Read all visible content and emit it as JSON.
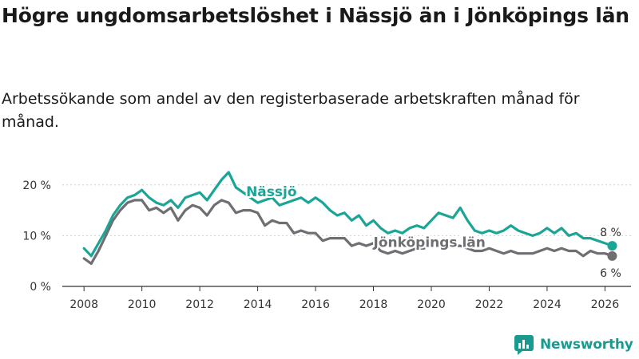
{
  "title": "Högre ungdomsarbetslöshet i Nässjö än i Jönköpings län",
  "subtitle": "Arbetssökande som andel av den registerbaserade arbetskraften månad för månad.",
  "brand": {
    "name": "Newsworthy",
    "icon": "newsworthy-logo-icon",
    "color": "#1a9a8f"
  },
  "chart_data": {
    "type": "line",
    "title": "Högre ungdomsarbetslöshet i Nässjö än i Jönköpings län",
    "xlabel": "",
    "ylabel": "",
    "xlim": [
      2007.25,
      2026.9
    ],
    "ylim": [
      0,
      25
    ],
    "yticks": [
      0,
      10,
      20
    ],
    "ytick_labels": [
      "0 %",
      "10 %",
      "20 %"
    ],
    "xticks": [
      2008,
      2010,
      2012,
      2014,
      2016,
      2018,
      2020,
      2022,
      2024,
      2026
    ],
    "xtick_labels": [
      "2008",
      "2010",
      "2012",
      "2014",
      "2016",
      "2018",
      "2020",
      "2022",
      "2024",
      "2026"
    ],
    "grid": "horizontal",
    "series": [
      {
        "name": "Nässjö",
        "label": "Nässjö",
        "color": "#1ba597",
        "end_label": "8 %",
        "end_value": 8,
        "x": [
          2008.0,
          2008.25,
          2008.5,
          2008.75,
          2009.0,
          2009.25,
          2009.5,
          2009.75,
          2010.0,
          2010.25,
          2010.5,
          2010.75,
          2011.0,
          2011.25,
          2011.5,
          2011.75,
          2012.0,
          2012.25,
          2012.5,
          2012.75,
          2013.0,
          2013.25,
          2013.5,
          2013.75,
          2014.0,
          2014.25,
          2014.5,
          2014.75,
          2015.0,
          2015.25,
          2015.5,
          2015.75,
          2016.0,
          2016.25,
          2016.5,
          2016.75,
          2017.0,
          2017.25,
          2017.5,
          2017.75,
          2018.0,
          2018.25,
          2018.5,
          2018.75,
          2019.0,
          2019.25,
          2019.5,
          2019.75,
          2020.0,
          2020.25,
          2020.5,
          2020.75,
          2021.0,
          2021.25,
          2021.5,
          2021.75,
          2022.0,
          2022.25,
          2022.5,
          2022.75,
          2023.0,
          2023.25,
          2023.5,
          2023.75,
          2024.0,
          2024.25,
          2024.5,
          2024.75,
          2025.0,
          2025.25,
          2025.5,
          2025.75,
          2026.0,
          2026.25
        ],
        "values": [
          7.5,
          6.0,
          8.5,
          11.0,
          14.0,
          16.0,
          17.5,
          18.0,
          19.0,
          17.5,
          16.5,
          16.0,
          17.0,
          15.5,
          17.5,
          18.0,
          18.5,
          17.0,
          19.0,
          21.0,
          22.5,
          19.5,
          18.5,
          17.5,
          16.5,
          17.0,
          17.5,
          16.0,
          16.5,
          17.0,
          17.5,
          16.5,
          17.5,
          16.5,
          15.0,
          14.0,
          14.5,
          13.0,
          14.0,
          12.0,
          13.0,
          11.5,
          10.5,
          11.0,
          10.5,
          11.5,
          12.0,
          11.5,
          13.0,
          14.5,
          14.0,
          13.5,
          15.5,
          13.0,
          11.0,
          10.5,
          11.0,
          10.5,
          11.0,
          12.0,
          11.0,
          10.5,
          10.0,
          10.5,
          11.5,
          10.5,
          11.5,
          10.0,
          10.5,
          9.5,
          9.5,
          9.0,
          8.5,
          8.0
        ]
      },
      {
        "name": "Jönköpings län",
        "label": "Jönköpings län",
        "color": "#6e6e73",
        "end_label": "6 %",
        "end_value": 6,
        "x": [
          2008.0,
          2008.25,
          2008.5,
          2008.75,
          2009.0,
          2009.25,
          2009.5,
          2009.75,
          2010.0,
          2010.25,
          2010.5,
          2010.75,
          2011.0,
          2011.25,
          2011.5,
          2011.75,
          2012.0,
          2012.25,
          2012.5,
          2012.75,
          2013.0,
          2013.25,
          2013.5,
          2013.75,
          2014.0,
          2014.25,
          2014.5,
          2014.75,
          2015.0,
          2015.25,
          2015.5,
          2015.75,
          2016.0,
          2016.25,
          2016.5,
          2016.75,
          2017.0,
          2017.25,
          2017.5,
          2017.75,
          2018.0,
          2018.25,
          2018.5,
          2018.75,
          2019.0,
          2019.25,
          2019.5,
          2019.75,
          2020.0,
          2020.25,
          2020.5,
          2020.75,
          2021.0,
          2021.25,
          2021.5,
          2021.75,
          2022.0,
          2022.25,
          2022.5,
          2022.75,
          2023.0,
          2023.25,
          2023.5,
          2023.75,
          2024.0,
          2024.25,
          2024.5,
          2024.75,
          2025.0,
          2025.25,
          2025.5,
          2025.75,
          2026.0,
          2026.25
        ],
        "values": [
          5.5,
          4.5,
          7.0,
          10.0,
          13.0,
          15.0,
          16.5,
          17.0,
          17.0,
          15.0,
          15.5,
          14.5,
          15.5,
          13.0,
          15.0,
          16.0,
          15.5,
          14.0,
          16.0,
          17.0,
          16.5,
          14.5,
          15.0,
          15.0,
          14.5,
          12.0,
          13.0,
          12.5,
          12.5,
          10.5,
          11.0,
          10.5,
          10.5,
          9.0,
          9.5,
          9.5,
          9.5,
          8.0,
          8.5,
          8.0,
          8.5,
          7.0,
          6.5,
          7.0,
          6.5,
          7.0,
          7.5,
          7.5,
          8.5,
          8.5,
          8.5,
          8.0,
          8.0,
          7.5,
          7.0,
          7.0,
          7.5,
          7.0,
          6.5,
          7.0,
          6.5,
          6.5,
          6.5,
          7.0,
          7.5,
          7.0,
          7.5,
          7.0,
          7.0,
          6.0,
          7.0,
          6.5,
          6.5,
          6.0
        ]
      }
    ]
  }
}
